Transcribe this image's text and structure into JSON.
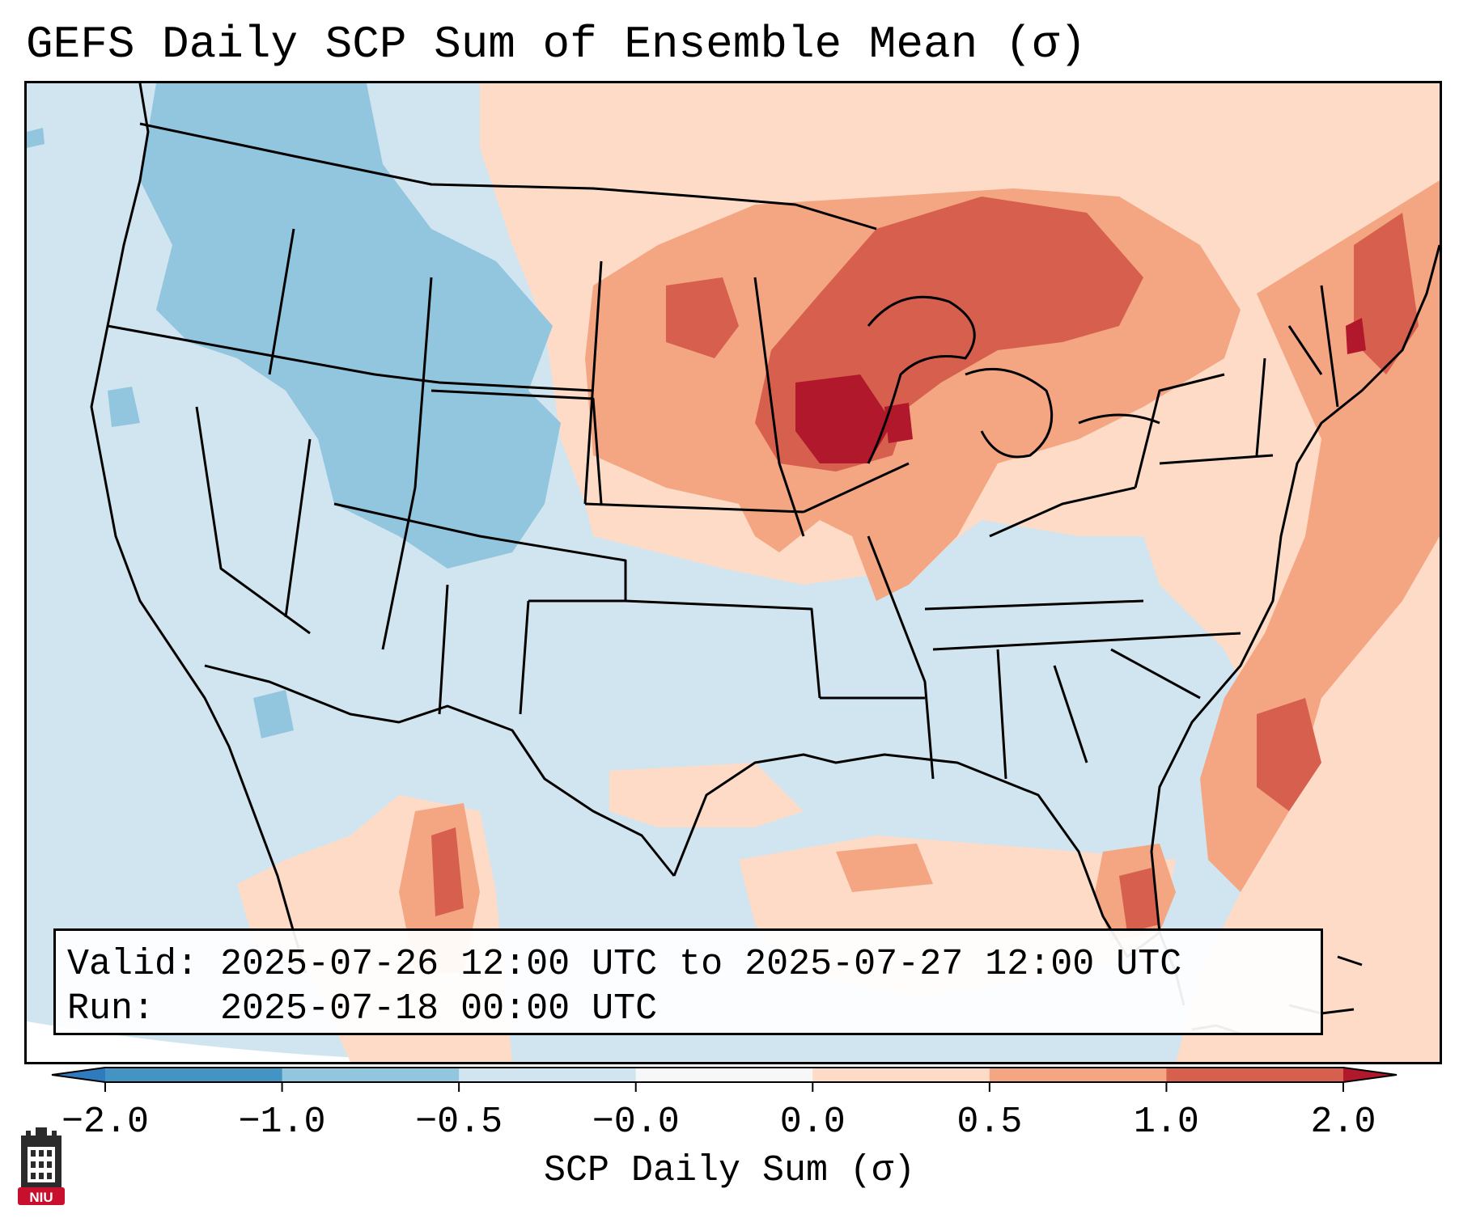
{
  "title": "GEFS Daily SCP Sum of Ensemble Mean (σ)",
  "info": {
    "valid_label": "Valid:",
    "valid_value": "2025-07-26 12:00 UTC to 2025-07-27 12:00 UTC",
    "run_label": "Run:",
    "run_value": "2025-07-18 00:00 UTC"
  },
  "colorbar": {
    "label": "SCP Daily Sum (σ)",
    "ticks": [
      "−2.0",
      "−1.0",
      "−0.5",
      "−0.0",
      "0.0",
      "0.5",
      "1.0",
      "2.0"
    ],
    "under_color": "#2f7bbd",
    "over_color": "#b2182b",
    "bins": [
      {
        "range": "-2.0 to -1.0",
        "color": "#4393c3"
      },
      {
        "range": "-1.0 to -0.5",
        "color": "#92c5de"
      },
      {
        "range": "-0.5 to -0.0",
        "color": "#d1e5f0"
      },
      {
        "range": "-0.0 to 0.0",
        "color": "#f7f7f7"
      },
      {
        "range": "0.0 to 0.5",
        "color": "#fddbc7"
      },
      {
        "range": "0.5 to 1.0",
        "color": "#f4a582"
      },
      {
        "range": "1.0 to 2.0",
        "color": "#d6604d"
      }
    ]
  },
  "map": {
    "region": "Contiguous United States",
    "background_color": "#d1e5f0",
    "border_color": "#000000"
  },
  "logo": {
    "text": "NIU",
    "color": "#c8102e"
  }
}
